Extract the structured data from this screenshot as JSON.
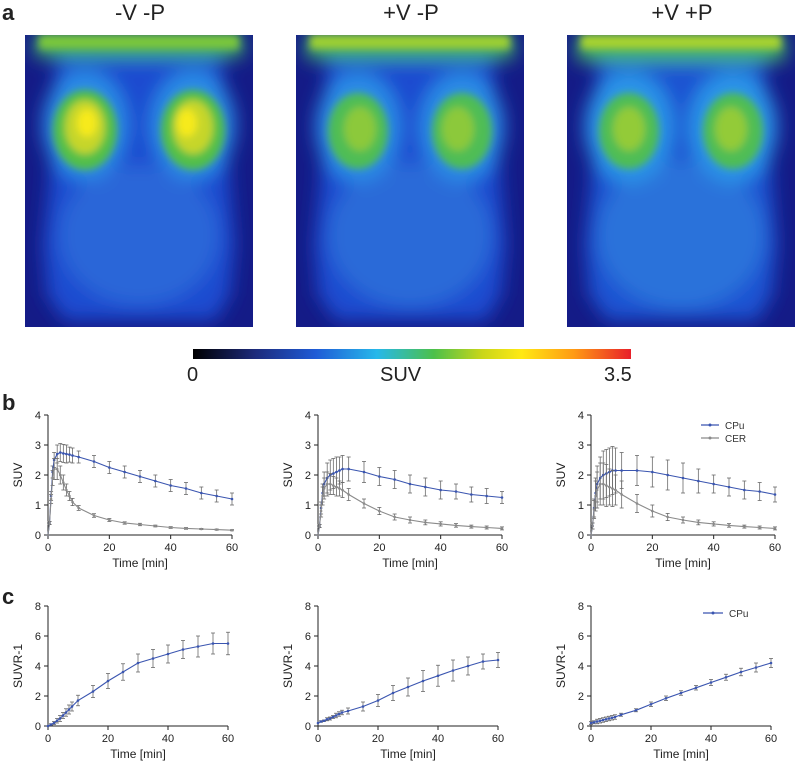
{
  "panel_labels": {
    "a": "a",
    "b": "b",
    "c": "c"
  },
  "conditions": [
    "-V -P",
    "+V -P",
    "+V +P"
  ],
  "colorbar": {
    "min_label": "0",
    "max_label": "3.5",
    "label": "SUV"
  },
  "colors": {
    "cpu": "#3a55b0",
    "cer": "#8a8a8a"
  },
  "legend_b": {
    "cpu": "CPu",
    "cer": "CER"
  },
  "legend_c": {
    "cpu": "CPu"
  },
  "chart_data": [
    {
      "id": "b1",
      "type": "line",
      "xlabel": "Time [min]",
      "ylabel": "SUV",
      "xlim": [
        0,
        60
      ],
      "ylim": [
        0,
        4
      ],
      "xticks": [
        0,
        20,
        40,
        60
      ],
      "yticks": [
        0,
        1,
        2,
        3,
        4
      ],
      "series": [
        {
          "name": "CPu",
          "x": [
            0,
            0.5,
            1,
            1.5,
            2,
            3,
            4,
            5,
            6,
            7,
            8,
            10,
            15,
            20,
            25,
            30,
            35,
            40,
            45,
            50,
            55,
            60
          ],
          "y": [
            0,
            0.4,
            1.3,
            2.1,
            2.5,
            2.7,
            2.75,
            2.72,
            2.7,
            2.68,
            2.65,
            2.6,
            2.45,
            2.25,
            2.1,
            1.95,
            1.8,
            1.65,
            1.55,
            1.4,
            1.3,
            1.2
          ],
          "err": [
            0,
            0.05,
            0.15,
            0.2,
            0.25,
            0.3,
            0.3,
            0.3,
            0.3,
            0.25,
            0.25,
            0.2,
            0.2,
            0.2,
            0.2,
            0.2,
            0.2,
            0.2,
            0.2,
            0.2,
            0.2,
            0.2
          ]
        },
        {
          "name": "CER",
          "x": [
            0,
            0.5,
            1,
            1.5,
            2,
            3,
            4,
            5,
            6,
            7,
            8,
            10,
            15,
            20,
            25,
            30,
            35,
            40,
            45,
            50,
            55,
            60
          ],
          "y": [
            0,
            0.4,
            1.2,
            1.9,
            2.2,
            2.2,
            2.0,
            1.75,
            1.5,
            1.3,
            1.1,
            0.9,
            0.65,
            0.5,
            0.4,
            0.35,
            0.3,
            0.25,
            0.22,
            0.2,
            0.18,
            0.16
          ],
          "err": [
            0,
            0.05,
            0.15,
            0.25,
            0.35,
            0.35,
            0.3,
            0.25,
            0.2,
            0.15,
            0.12,
            0.08,
            0.06,
            0.05,
            0.04,
            0.04,
            0.03,
            0.03,
            0.03,
            0.02,
            0.02,
            0.02
          ]
        }
      ]
    },
    {
      "id": "b2",
      "type": "line",
      "xlabel": "Time [min]",
      "ylabel": "SUV",
      "xlim": [
        0,
        60
      ],
      "ylim": [
        0,
        4
      ],
      "xticks": [
        0,
        20,
        40,
        60
      ],
      "yticks": [
        0,
        1,
        2,
        3,
        4
      ],
      "series": [
        {
          "name": "CPu",
          "x": [
            0,
            0.5,
            1,
            1.5,
            2,
            3,
            4,
            5,
            6,
            7,
            8,
            10,
            15,
            20,
            25,
            30,
            35,
            40,
            45,
            50,
            55,
            60
          ],
          "y": [
            0,
            0.3,
            0.9,
            1.4,
            1.7,
            1.9,
            2.0,
            2.05,
            2.1,
            2.15,
            2.2,
            2.2,
            2.1,
            1.95,
            1.85,
            1.7,
            1.6,
            1.5,
            1.45,
            1.35,
            1.3,
            1.25
          ],
          "err": [
            0,
            0.05,
            0.2,
            0.3,
            0.4,
            0.5,
            0.5,
            0.5,
            0.5,
            0.45,
            0.45,
            0.4,
            0.35,
            0.3,
            0.3,
            0.3,
            0.3,
            0.3,
            0.25,
            0.25,
            0.25,
            0.2
          ]
        },
        {
          "name": "CER",
          "x": [
            0,
            0.5,
            1,
            1.5,
            2,
            3,
            4,
            5,
            6,
            7,
            8,
            10,
            15,
            20,
            25,
            30,
            35,
            40,
            45,
            50,
            55,
            60
          ],
          "y": [
            0,
            0.3,
            0.8,
            1.3,
            1.55,
            1.7,
            1.7,
            1.65,
            1.6,
            1.55,
            1.5,
            1.35,
            1.05,
            0.8,
            0.6,
            0.5,
            0.42,
            0.37,
            0.32,
            0.28,
            0.25,
            0.22
          ],
          "err": [
            0,
            0.05,
            0.2,
            0.3,
            0.35,
            0.4,
            0.35,
            0.3,
            0.3,
            0.25,
            0.25,
            0.2,
            0.15,
            0.12,
            0.1,
            0.1,
            0.08,
            0.07,
            0.06,
            0.05,
            0.05,
            0.05
          ]
        }
      ]
    },
    {
      "id": "b3",
      "type": "line",
      "xlabel": "Time [min]",
      "ylabel": "SUV",
      "xlim": [
        0,
        60
      ],
      "ylim": [
        0,
        4
      ],
      "xticks": [
        0,
        20,
        40,
        60
      ],
      "yticks": [
        0,
        1,
        2,
        3,
        4
      ],
      "series": [
        {
          "name": "CPu",
          "x": [
            0,
            0.5,
            1,
            1.5,
            2,
            3,
            4,
            5,
            6,
            7,
            8,
            10,
            15,
            20,
            25,
            30,
            35,
            40,
            45,
            50,
            55,
            60
          ],
          "y": [
            0,
            0.3,
            0.9,
            1.4,
            1.7,
            1.9,
            2.0,
            2.05,
            2.1,
            2.15,
            2.15,
            2.15,
            2.15,
            2.1,
            2.0,
            1.9,
            1.8,
            1.7,
            1.6,
            1.5,
            1.45,
            1.35
          ],
          "err": [
            0,
            0.1,
            0.3,
            0.5,
            0.6,
            0.7,
            0.8,
            0.8,
            0.8,
            0.8,
            0.75,
            0.6,
            0.5,
            0.5,
            0.5,
            0.5,
            0.4,
            0.3,
            0.3,
            0.3,
            0.3,
            0.25
          ]
        },
        {
          "name": "CER",
          "x": [
            0,
            0.5,
            1,
            1.5,
            2,
            3,
            4,
            5,
            6,
            7,
            8,
            10,
            15,
            20,
            25,
            30,
            35,
            40,
            45,
            50,
            55,
            60
          ],
          "y": [
            0,
            0.3,
            0.85,
            1.3,
            1.5,
            1.7,
            1.7,
            1.65,
            1.6,
            1.55,
            1.5,
            1.35,
            1.05,
            0.8,
            0.6,
            0.5,
            0.42,
            0.37,
            0.32,
            0.28,
            0.25,
            0.22
          ],
          "err": [
            0,
            0.1,
            0.3,
            0.5,
            0.6,
            0.7,
            0.7,
            0.7,
            0.6,
            0.6,
            0.5,
            0.45,
            0.3,
            0.2,
            0.12,
            0.1,
            0.08,
            0.07,
            0.06,
            0.05,
            0.05,
            0.05
          ]
        }
      ]
    },
    {
      "id": "c1",
      "type": "line",
      "xlabel": "Time [min]",
      "ylabel": "SUVR-1",
      "xlim": [
        0,
        60
      ],
      "ylim": [
        0,
        8
      ],
      "xticks": [
        0,
        20,
        40,
        60
      ],
      "yticks": [
        0,
        2,
        4,
        6,
        8
      ],
      "series": [
        {
          "name": "CPu",
          "x": [
            0,
            1,
            2,
            3,
            4,
            5,
            6,
            7,
            8,
            10,
            15,
            20,
            25,
            30,
            35,
            40,
            45,
            50,
            55,
            60
          ],
          "y": [
            0,
            0.1,
            0.2,
            0.35,
            0.5,
            0.7,
            0.9,
            1.1,
            1.3,
            1.7,
            2.3,
            3.0,
            3.6,
            4.2,
            4.5,
            4.8,
            5.1,
            5.3,
            5.5,
            5.5
          ],
          "err": [
            0,
            0.05,
            0.1,
            0.15,
            0.2,
            0.2,
            0.25,
            0.3,
            0.3,
            0.35,
            0.4,
            0.5,
            0.55,
            0.6,
            0.6,
            0.6,
            0.6,
            0.7,
            0.7,
            0.75
          ]
        }
      ]
    },
    {
      "id": "c2",
      "type": "line",
      "xlabel": "Time [min]",
      "ylabel": "SUVR-1",
      "xlim": [
        0,
        60
      ],
      "ylim": [
        0,
        8
      ],
      "xticks": [
        0,
        20,
        40,
        60
      ],
      "yticks": [
        0,
        2,
        4,
        6,
        8
      ],
      "series": [
        {
          "name": "CPu",
          "x": [
            0,
            1,
            2,
            3,
            4,
            5,
            6,
            7,
            8,
            10,
            15,
            20,
            25,
            30,
            35,
            40,
            45,
            50,
            55,
            60
          ],
          "y": [
            0.2,
            0.3,
            0.35,
            0.45,
            0.5,
            0.6,
            0.7,
            0.8,
            0.9,
            1.0,
            1.3,
            1.7,
            2.2,
            2.6,
            3.0,
            3.35,
            3.7,
            4.0,
            4.3,
            4.4
          ],
          "err": [
            0,
            0.05,
            0.05,
            0.1,
            0.1,
            0.1,
            0.15,
            0.15,
            0.15,
            0.2,
            0.3,
            0.4,
            0.5,
            0.6,
            0.7,
            0.7,
            0.7,
            0.6,
            0.5,
            0.5
          ]
        }
      ]
    },
    {
      "id": "c3",
      "type": "line",
      "xlabel": "Time [min]",
      "ylabel": "SUVR-1",
      "xlim": [
        0,
        60
      ],
      "ylim": [
        0,
        8
      ],
      "xticks": [
        0,
        20,
        40,
        60
      ],
      "yticks": [
        0,
        2,
        4,
        6,
        8
      ],
      "series": [
        {
          "name": "CPu",
          "x": [
            0,
            1,
            2,
            3,
            4,
            5,
            6,
            7,
            8,
            10,
            15,
            20,
            25,
            30,
            35,
            40,
            45,
            50,
            55,
            60
          ],
          "y": [
            0.2,
            0.25,
            0.3,
            0.35,
            0.4,
            0.45,
            0.5,
            0.55,
            0.6,
            0.75,
            1.05,
            1.45,
            1.85,
            2.2,
            2.55,
            2.9,
            3.25,
            3.6,
            3.9,
            4.2
          ],
          "err": [
            0.1,
            0.1,
            0.15,
            0.15,
            0.15,
            0.15,
            0.15,
            0.15,
            0.15,
            0.1,
            0.1,
            0.15,
            0.15,
            0.15,
            0.15,
            0.2,
            0.2,
            0.25,
            0.3,
            0.3
          ]
        }
      ]
    }
  ]
}
